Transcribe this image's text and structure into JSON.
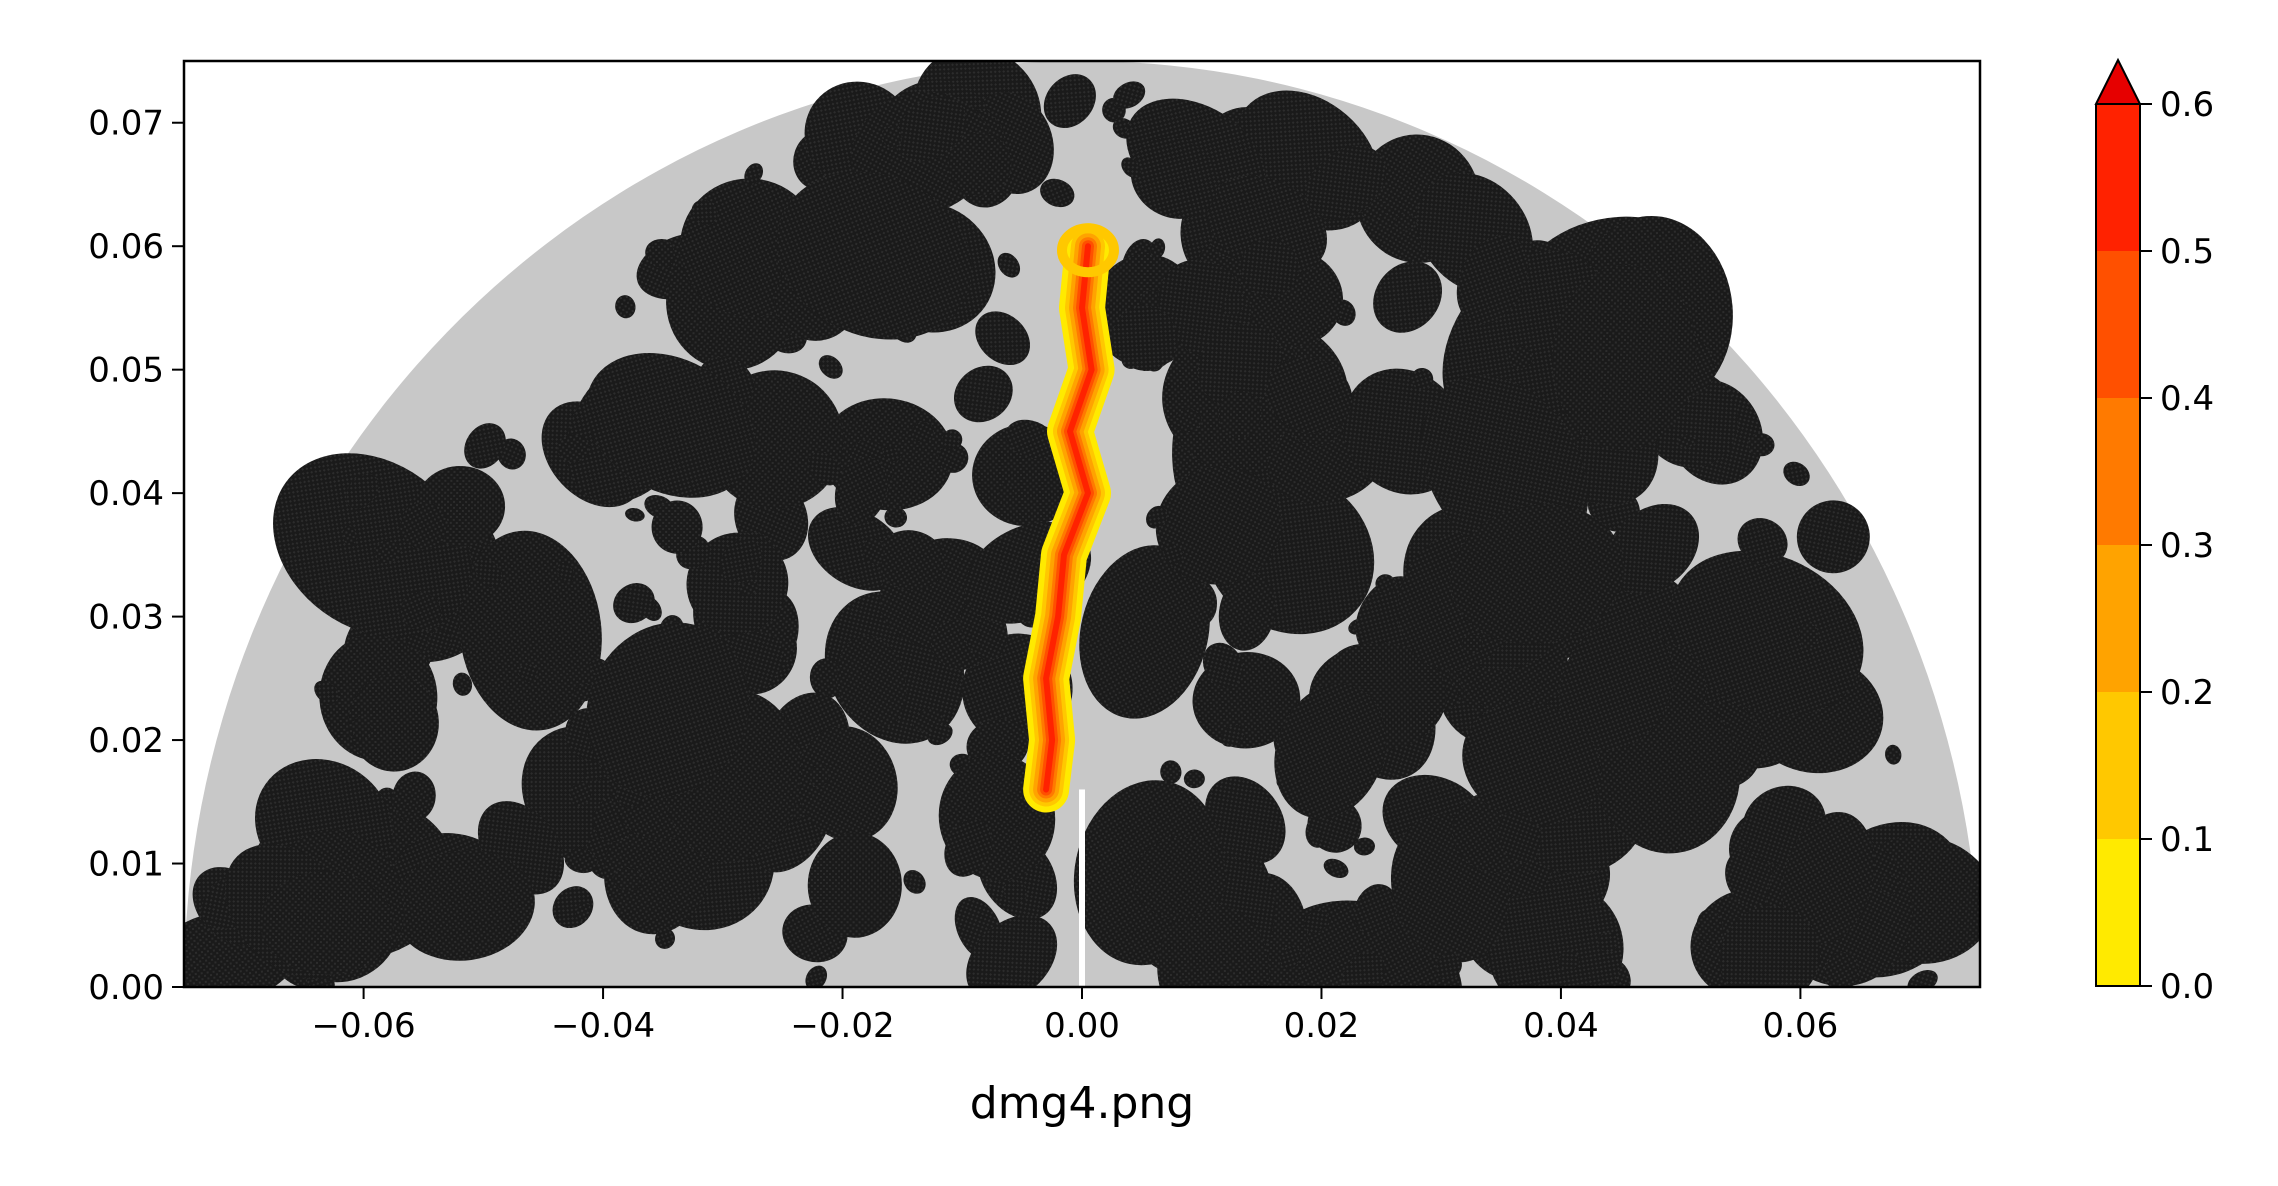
{
  "chart_data": {
    "type": "heatmap",
    "title": "",
    "xlabel": "dmg4.png",
    "ylabel": "",
    "xlim": [
      -0.075,
      0.075
    ],
    "ylim": [
      0.0,
      0.075
    ],
    "x_ticks": [
      "−0.06",
      "−0.04",
      "−0.02",
      "0.00",
      "0.02",
      "0.04",
      "0.06"
    ],
    "x_tick_values": [
      -0.06,
      -0.04,
      -0.02,
      0.0,
      0.02,
      0.04,
      0.06
    ],
    "y_ticks": [
      "0.00",
      "0.01",
      "0.02",
      "0.03",
      "0.04",
      "0.05",
      "0.06",
      "0.07"
    ],
    "y_tick_values": [
      0.0,
      0.01,
      0.02,
      0.03,
      0.04,
      0.05,
      0.06,
      0.07
    ],
    "domain": {
      "shape": "half-disk",
      "center": [
        0.0,
        0.0
      ],
      "radius": 0.075
    },
    "materials": [
      {
        "name": "aggregate",
        "color": "#1a1a1a"
      },
      {
        "name": "matrix",
        "color": "#c8c8c8"
      }
    ],
    "notch": {
      "x": 0.0,
      "y_range": [
        0.0,
        0.016
      ]
    },
    "damage_path": [
      {
        "x": -0.003,
        "y": 0.016
      },
      {
        "x": -0.0025,
        "y": 0.02
      },
      {
        "x": -0.003,
        "y": 0.025
      },
      {
        "x": -0.002,
        "y": 0.03
      },
      {
        "x": -0.0015,
        "y": 0.035
      },
      {
        "x": 0.0005,
        "y": 0.04
      },
      {
        "x": -0.001,
        "y": 0.045
      },
      {
        "x": 0.0008,
        "y": 0.05
      },
      {
        "x": 0.0,
        "y": 0.055
      },
      {
        "x": 0.0005,
        "y": 0.06
      }
    ],
    "colorbar": {
      "ticks": [
        "0.0",
        "0.1",
        "0.2",
        "0.3",
        "0.4",
        "0.5",
        "0.6"
      ],
      "tick_values": [
        0.0,
        0.1,
        0.2,
        0.3,
        0.4,
        0.5,
        0.6
      ],
      "extend": "max",
      "levels": [
        {
          "range": [
            0.0,
            0.1
          ],
          "color": "#ffea00"
        },
        {
          "range": [
            0.1,
            0.2
          ],
          "color": "#ffc800"
        },
        {
          "range": [
            0.2,
            0.3
          ],
          "color": "#ffa300"
        },
        {
          "range": [
            0.3,
            0.4
          ],
          "color": "#ff7a00"
        },
        {
          "range": [
            0.4,
            0.5
          ],
          "color": "#ff5000"
        },
        {
          "range": [
            0.5,
            0.6
          ],
          "color": "#ff2200"
        }
      ],
      "over_color": "#e60000"
    }
  }
}
